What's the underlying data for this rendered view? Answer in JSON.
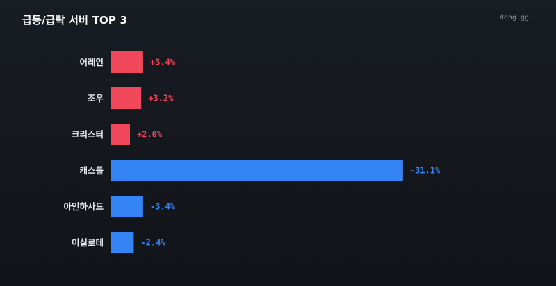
{
  "header": {
    "title": "급등/급락 서버 TOP 3",
    "brand": "deng.gg"
  },
  "colors": {
    "positive": "#f0475a",
    "negative": "#3584f5"
  },
  "chart_data": {
    "type": "bar",
    "orientation": "horizontal",
    "title": "급등/급락 서버 TOP 3",
    "categories": [
      "어레인",
      "조우",
      "크리스터",
      "캐스톨",
      "아인하사드",
      "이실로테"
    ],
    "values": [
      3.4,
      3.2,
      2.0,
      -31.1,
      -3.4,
      -2.4
    ],
    "value_labels": [
      "+3.4%",
      "+3.2%",
      "+2.0%",
      "-31.1%",
      "-3.4%",
      "-2.4%"
    ],
    "bar_length": "absolute value",
    "unit": "%",
    "grid": false,
    "legend": "none"
  }
}
